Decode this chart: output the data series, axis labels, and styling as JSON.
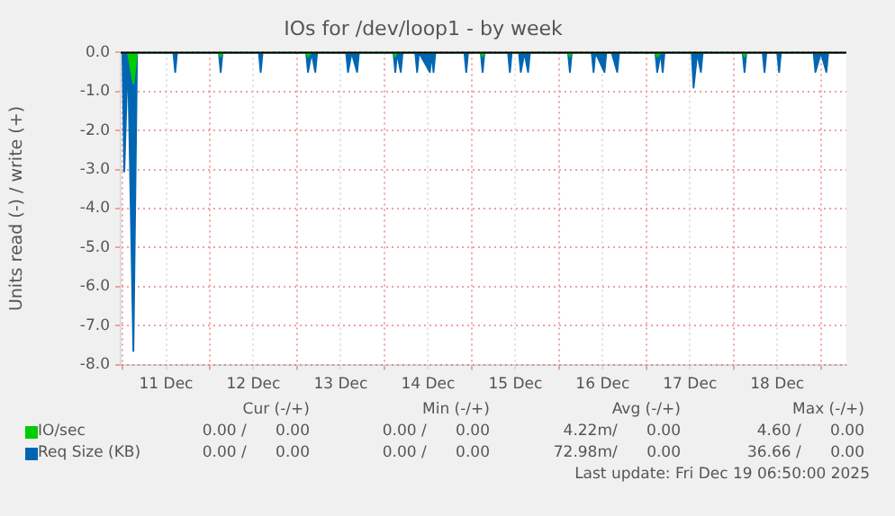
{
  "chart_data": {
    "type": "area",
    "title": "IOs for /dev/loop1 - by week",
    "ylabel": "Units read (-) / write (+)",
    "x": [
      "2025-12-11T00:00",
      "2025-12-11T00:30",
      "2025-12-11T01:30",
      "2025-12-11T03:00",
      "2025-12-11T04:00",
      "2025-12-11T14:00",
      "2025-12-11T14:30",
      "2025-12-11T15:00",
      "2025-12-12T02:30",
      "2025-12-12T03:00",
      "2025-12-12T03:30",
      "2025-12-12T13:30",
      "2025-12-12T14:00",
      "2025-12-12T14:30",
      "2025-12-13T02:30",
      "2025-12-13T03:00",
      "2025-12-13T04:00",
      "2025-12-13T05:00",
      "2025-12-13T05:30",
      "2025-12-13T13:30",
      "2025-12-13T14:00",
      "2025-12-13T15:00",
      "2025-12-13T16:30",
      "2025-12-13T17:00",
      "2025-12-14T02:30",
      "2025-12-14T03:00",
      "2025-12-14T03:30",
      "2025-12-14T04:30",
      "2025-12-14T05:00",
      "2025-12-14T08:30",
      "2025-12-14T09:00",
      "2025-12-14T09:30",
      "2025-12-14T12:30",
      "2025-12-14T13:00",
      "2025-12-14T13:30",
      "2025-12-14T14:00",
      "2025-12-14T22:00",
      "2025-12-14T22:30",
      "2025-12-14T23:00",
      "2025-12-15T02:30",
      "2025-12-15T03:00",
      "2025-12-15T03:30",
      "2025-12-15T10:00",
      "2025-12-15T10:30",
      "2025-12-15T11:00",
      "2025-12-15T13:00",
      "2025-12-15T13:30",
      "2025-12-15T14:30",
      "2025-12-15T15:30",
      "2025-12-15T16:00",
      "2025-12-16T02:30",
      "2025-12-16T03:00",
      "2025-12-16T03:30",
      "2025-12-16T09:00",
      "2025-12-16T09:30",
      "2025-12-16T10:00",
      "2025-12-16T12:30",
      "2025-12-16T13:00",
      "2025-12-16T14:30",
      "2025-12-16T16:00",
      "2025-12-16T16:30",
      "2025-12-17T02:30",
      "2025-12-17T03:00",
      "2025-12-17T04:00",
      "2025-12-17T04:30",
      "2025-12-17T05:00",
      "2025-12-17T12:30",
      "2025-12-17T13:00",
      "2025-12-17T14:00",
      "2025-12-17T15:00",
      "2025-12-17T15:30",
      "2025-12-18T02:30",
      "2025-12-18T03:00",
      "2025-12-18T03:30",
      "2025-12-18T08:00",
      "2025-12-18T08:30",
      "2025-12-18T09:00",
      "2025-12-18T12:00",
      "2025-12-18T12:30",
      "2025-12-18T13:00",
      "2025-12-18T22:00",
      "2025-12-18T22:30",
      "2025-12-19T00:00",
      "2025-12-19T01:30",
      "2025-12-19T02:00",
      "2025-12-19T06:50"
    ],
    "series": [
      {
        "name": "IO/sec",
        "color": "#00cc00",
        "values": [
          0,
          0,
          0,
          -0.8,
          0,
          0,
          0,
          0,
          0,
          -0.1,
          0,
          0,
          0,
          0,
          0,
          -0.1,
          0,
          0,
          0,
          0,
          0,
          0,
          0,
          0,
          0,
          -0.1,
          0,
          0,
          0,
          0,
          0,
          0,
          0,
          0,
          0,
          0,
          0,
          0,
          0,
          0,
          -0.1,
          0,
          0,
          0,
          0,
          0,
          0,
          0,
          0,
          0,
          0,
          -0.1,
          0,
          0,
          0,
          0,
          0,
          0,
          0,
          0,
          0,
          0,
          -0.1,
          0,
          0,
          0,
          0,
          0,
          0,
          0,
          0,
          0,
          -0.1,
          0,
          0,
          0,
          0,
          0,
          0,
          0,
          0,
          0,
          0,
          0,
          0,
          0
        ]
      },
      {
        "name": "Req Size (KB)",
        "color": "#0066b3",
        "values": [
          0,
          -3.05,
          0,
          -7.65,
          0,
          0,
          -0.5,
          0,
          0,
          -0.5,
          0,
          0,
          -0.5,
          0,
          0,
          -0.5,
          0,
          -0.5,
          0,
          0,
          -0.5,
          0,
          -0.5,
          0,
          0,
          -0.5,
          0,
          -0.5,
          0,
          0,
          -0.5,
          0,
          -0.5,
          0,
          -0.5,
          0,
          0,
          -0.5,
          0,
          0,
          -0.5,
          0,
          0,
          -0.5,
          0,
          0,
          -0.5,
          0,
          -0.5,
          0,
          0,
          -0.5,
          0,
          0,
          -0.5,
          0,
          -0.5,
          0,
          0,
          -0.5,
          0,
          0,
          -0.5,
          0,
          -0.5,
          0,
          0,
          -0.9,
          0,
          -0.5,
          0,
          0,
          -0.5,
          0,
          0,
          -0.5,
          0,
          0,
          -0.5,
          0,
          0,
          -0.5,
          0,
          -0.5,
          0,
          0
        ]
      }
    ],
    "xlim": [
      "2025-12-10T23:30",
      "2025-12-19T07:00"
    ],
    "xticks": [
      {
        "value": "2025-12-11T00:00",
        "label": null
      },
      {
        "value": "2025-12-11T12:00",
        "label": "11 Dec"
      },
      {
        "value": "2025-12-12T00:00",
        "label": null
      },
      {
        "value": "2025-12-12T12:00",
        "label": "12 Dec"
      },
      {
        "value": "2025-12-13T00:00",
        "label": null
      },
      {
        "value": "2025-12-13T12:00",
        "label": "13 Dec"
      },
      {
        "value": "2025-12-14T00:00",
        "label": null
      },
      {
        "value": "2025-12-14T12:00",
        "label": "14 Dec"
      },
      {
        "value": "2025-12-15T00:00",
        "label": null
      },
      {
        "value": "2025-12-15T12:00",
        "label": "15 Dec"
      },
      {
        "value": "2025-12-16T00:00",
        "label": null
      },
      {
        "value": "2025-12-16T12:00",
        "label": "16 Dec"
      },
      {
        "value": "2025-12-17T00:00",
        "label": null
      },
      {
        "value": "2025-12-17T12:00",
        "label": "17 Dec"
      },
      {
        "value": "2025-12-18T00:00",
        "label": null
      },
      {
        "value": "2025-12-18T12:00",
        "label": "18 Dec"
      },
      {
        "value": "2025-12-19T00:00",
        "label": null
      }
    ],
    "ylim": [
      -8,
      0
    ],
    "yticks": [
      {
        "value": -8,
        "label": "-8.0"
      },
      {
        "value": -7,
        "label": "-7.0"
      },
      {
        "value": -6,
        "label": "-6.0"
      },
      {
        "value": -5,
        "label": "-5.0"
      },
      {
        "value": -4,
        "label": "-4.0"
      },
      {
        "value": -3,
        "label": "-3.0"
      },
      {
        "value": -2,
        "label": "-2.0"
      },
      {
        "value": -1,
        "label": "-1.0"
      },
      {
        "value": 0,
        "label": "0.0"
      }
    ],
    "grid": true,
    "legend": "bottom left",
    "annotations": [
      "Cur (-/+)",
      "Min (-/+)",
      "Avg (-/+)",
      "Max (-/+)",
      "0.00 /      0.00",
      "0.00 /      0.00",
      "4.22m/      0.00",
      "4.60 /      0.00",
      "0.00 /      0.00",
      "0.00 /      0.00",
      "72.98m/      0.00",
      "36.66 /      0.00",
      "Last update: Fri Dec 19 06:50:00 2025"
    ]
  }
}
